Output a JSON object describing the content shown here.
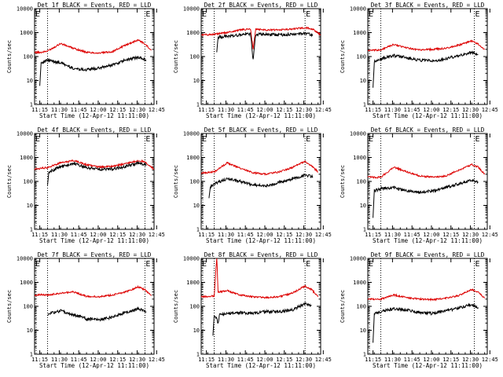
{
  "colors": {
    "events": "#000000",
    "lld": "#dd0000",
    "axis": "#000000",
    "background": "#ffffff"
  },
  "chart_data": [
    {
      "type": "line",
      "title": "Det 1f BLACK = Events, RED = LLD",
      "xlabel": "Start Time (12-Apr-12 11:11:00)",
      "ylabel": "Counts/sec",
      "x_ticks": [
        "11:15",
        "11:30",
        "11:45",
        "12:00",
        "12:15",
        "12:30",
        "12:45"
      ],
      "y_ticks": [
        "1",
        "10",
        "100",
        "1000",
        "10000"
      ],
      "y_scale": "log",
      "ylim": [
        1,
        10000
      ],
      "series": [
        {
          "name": "LLD",
          "color": "red",
          "x": [
            0,
            5,
            10,
            20,
            30,
            40,
            50,
            60,
            70,
            80,
            85,
            90
          ],
          "values": [
            150,
            150,
            170,
            350,
            220,
            150,
            140,
            160,
            300,
            500,
            330,
            190
          ]
        },
        {
          "name": "Events",
          "color": "black",
          "start_x": 4,
          "start_value": 6,
          "x": [
            5,
            10,
            20,
            30,
            40,
            50,
            60,
            70,
            80,
            86
          ],
          "values": [
            55,
            70,
            55,
            32,
            28,
            33,
            45,
            70,
            95,
            70
          ]
        }
      ],
      "vlines": [
        10,
        85
      ],
      "markers": [
        {
          "x": 85,
          "label": "E"
        }
      ]
    },
    {
      "type": "line",
      "title": "Det 2f BLACK = Events, RED = LLD",
      "xlabel": "Start Time (12-Apr-12 11:11:00)",
      "ylabel": "Counts/sec",
      "x_ticks": [
        "11:15",
        "11:30",
        "11:45",
        "12:00",
        "12:15",
        "12:30",
        "12:45"
      ],
      "y_ticks": [
        "1",
        "10",
        "100",
        "1000",
        "10000"
      ],
      "y_scale": "log",
      "ylim": [
        1,
        10000
      ],
      "series": [
        {
          "name": "LLD",
          "color": "red",
          "x": [
            0,
            10,
            20,
            30,
            38,
            40,
            42,
            50,
            60,
            70,
            80,
            86,
            92
          ],
          "values": [
            800,
            850,
            1000,
            1300,
            1400,
            200,
            1400,
            1300,
            1300,
            1400,
            1600,
            1400,
            800
          ]
        },
        {
          "name": "Events",
          "color": "black",
          "start_x": 12,
          "start_value": 150,
          "x": [
            13,
            20,
            30,
            38,
            40,
            42,
            50,
            60,
            70,
            80,
            86
          ],
          "values": [
            650,
            700,
            800,
            900,
            70,
            850,
            850,
            800,
            850,
            950,
            800
          ]
        }
      ],
      "vlines": [
        10,
        80
      ],
      "markers": [
        {
          "x": 80,
          "label": "E"
        }
      ]
    },
    {
      "type": "line",
      "title": "Det 3f BLACK = Events, RED = LLD",
      "xlabel": "Start Time (12-Apr-12 11:11:00)",
      "ylabel": "Counts/sec",
      "x_ticks": [
        "11:15",
        "11:30",
        "11:45",
        "12:00",
        "12:15",
        "12:30",
        "12:45"
      ],
      "y_ticks": [
        "1",
        "10",
        "100",
        "1000",
        "10000"
      ],
      "y_scale": "log",
      "ylim": [
        1,
        10000
      ],
      "series": [
        {
          "name": "LLD",
          "color": "red",
          "x": [
            0,
            5,
            10,
            20,
            30,
            40,
            50,
            60,
            70,
            80,
            85,
            90
          ],
          "values": [
            180,
            180,
            190,
            320,
            230,
            190,
            200,
            220,
            300,
            450,
            330,
            200
          ]
        },
        {
          "name": "Events",
          "color": "black",
          "start_x": 4,
          "start_value": 5,
          "x": [
            5,
            10,
            20,
            30,
            40,
            50,
            60,
            70,
            80,
            85
          ],
          "values": [
            60,
            80,
            110,
            90,
            70,
            65,
            80,
            110,
            150,
            120
          ]
        }
      ],
      "vlines": [
        10,
        82
      ],
      "markers": [
        {
          "x": 82,
          "label": "E"
        }
      ]
    },
    {
      "type": "line",
      "title": "Det 4f BLACK = Events, RED = LLD",
      "xlabel": "Start Time (12-Apr-12 11:11:00)",
      "ylabel": "Counts/sec",
      "x_ticks": [
        "11:15",
        "11:30",
        "11:45",
        "12:00",
        "12:15",
        "12:30",
        "12:45"
      ],
      "y_ticks": [
        "1",
        "10",
        "100",
        "1000",
        "10000"
      ],
      "y_scale": "log",
      "ylim": [
        1,
        10000
      ],
      "series": [
        {
          "name": "LLD",
          "color": "red",
          "x": [
            0,
            10,
            20,
            30,
            40,
            50,
            60,
            70,
            80,
            85,
            92
          ],
          "values": [
            330,
            380,
            600,
            750,
            500,
            400,
            420,
            550,
            750,
            650,
            330
          ]
        },
        {
          "name": "Events",
          "color": "black",
          "start_x": 10,
          "start_value": 70,
          "x": [
            11,
            20,
            30,
            40,
            50,
            60,
            70,
            80,
            86
          ],
          "values": [
            250,
            400,
            550,
            380,
            320,
            330,
            420,
            600,
            500
          ]
        }
      ],
      "vlines": [
        10,
        85
      ],
      "markers": [
        {
          "x": 85,
          "label": "E"
        }
      ]
    },
    {
      "type": "line",
      "title": "Det 5f BLACK = Events, RED = LLD",
      "xlabel": "Start Time (12-Apr-12 11:11:00)",
      "ylabel": "Counts/sec",
      "x_ticks": [
        "11:15",
        "11:30",
        "11:45",
        "12:00",
        "12:15",
        "12:30",
        "12:45"
      ],
      "y_ticks": [
        "1",
        "10",
        "100",
        "1000",
        "10000"
      ],
      "y_scale": "log",
      "ylim": [
        1,
        10000
      ],
      "series": [
        {
          "name": "LLD",
          "color": "red",
          "x": [
            0,
            10,
            20,
            30,
            40,
            50,
            60,
            70,
            80,
            85,
            90
          ],
          "values": [
            220,
            250,
            600,
            350,
            230,
            200,
            250,
            380,
            700,
            450,
            250
          ]
        },
        {
          "name": "Events",
          "color": "black",
          "start_x": 6,
          "start_value": 20,
          "x": [
            7,
            10,
            20,
            30,
            40,
            50,
            60,
            70,
            80,
            86
          ],
          "values": [
            60,
            80,
            130,
            100,
            70,
            65,
            90,
            130,
            180,
            160
          ]
        }
      ],
      "vlines": [
        10,
        80
      ],
      "markers": [
        {
          "x": 80,
          "label": "E"
        }
      ]
    },
    {
      "type": "line",
      "title": "Det 6f BLACK = Events, RED = LLD",
      "xlabel": "Start Time (12-Apr-12 11:11:00)",
      "ylabel": "Counts/sec",
      "x_ticks": [
        "11:15",
        "11:30",
        "11:45",
        "12:00",
        "12:15",
        "12:30",
        "12:45"
      ],
      "y_ticks": [
        "1",
        "10",
        "100",
        "1000",
        "10000"
      ],
      "y_scale": "log",
      "ylim": [
        1,
        10000
      ],
      "series": [
        {
          "name": "LLD",
          "color": "red",
          "x": [
            0,
            10,
            20,
            30,
            40,
            50,
            60,
            70,
            80,
            85,
            90
          ],
          "values": [
            150,
            150,
            400,
            250,
            170,
            150,
            170,
            300,
            500,
            400,
            200
          ]
        },
        {
          "name": "Events",
          "color": "black",
          "start_x": 4,
          "start_value": 3,
          "x": [
            5,
            10,
            20,
            30,
            40,
            50,
            60,
            70,
            80,
            85
          ],
          "values": [
            40,
            50,
            55,
            40,
            35,
            40,
            55,
            80,
            110,
            90
          ]
        }
      ],
      "vlines": [
        10,
        82
      ],
      "markers": [
        {
          "x": 82,
          "label": "E"
        }
      ]
    },
    {
      "type": "line",
      "title": "Det 7f BLACK = Events, RED = LLD",
      "xlabel": "Start Time (12-Apr-12 11:11:00)",
      "ylabel": "Counts/sec",
      "x_ticks": [
        "11:15",
        "11:30",
        "11:45",
        "12:00",
        "12:15",
        "12:30",
        "12:45"
      ],
      "y_ticks": [
        "1",
        "10",
        "100",
        "1000",
        "10000"
      ],
      "y_scale": "log",
      "ylim": [
        1,
        10000
      ],
      "series": [
        {
          "name": "LLD",
          "color": "red",
          "x": [
            0,
            10,
            20,
            30,
            40,
            50,
            60,
            70,
            80,
            85,
            90
          ],
          "values": [
            300,
            300,
            350,
            400,
            260,
            250,
            300,
            400,
            650,
            500,
            280
          ]
        },
        {
          "name": "Events",
          "color": "black",
          "start_x": 10,
          "start_value": 40,
          "x": [
            11,
            20,
            30,
            40,
            50,
            60,
            70,
            80,
            86
          ],
          "values": [
            50,
            65,
            45,
            30,
            28,
            35,
            55,
            80,
            60
          ]
        }
      ],
      "vlines": [
        10,
        85
      ],
      "markers": [
        {
          "x": 85,
          "label": "E"
        }
      ]
    },
    {
      "type": "line",
      "title": "Det 8f BLACK = Events, RED = LLD",
      "xlabel": "Start Time (12-Apr-12 11:11:00)",
      "ylabel": "Counts/sec",
      "x_ticks": [
        "11:15",
        "11:30",
        "11:45",
        "12:00",
        "12:15",
        "12:30",
        "12:45"
      ],
      "y_ticks": [
        "1",
        "10",
        "100",
        "1000",
        "10000"
      ],
      "y_scale": "log",
      "ylim": [
        1,
        10000
      ],
      "series": [
        {
          "name": "LLD",
          "color": "red",
          "x": [
            0,
            10,
            12,
            13,
            14,
            20,
            30,
            40,
            50,
            60,
            70,
            80,
            85,
            90
          ],
          "values": [
            250,
            270,
            12000,
            400,
            400,
            450,
            300,
            250,
            230,
            250,
            350,
            700,
            500,
            250
          ]
        },
        {
          "name": "Events",
          "color": "black",
          "start_x": 9,
          "start_value": 6,
          "x": [
            10,
            12,
            13,
            14,
            20,
            30,
            40,
            50,
            60,
            70,
            80,
            85
          ],
          "values": [
            40,
            30,
            18,
            45,
            50,
            55,
            50,
            60,
            60,
            70,
            130,
            110
          ]
        }
      ],
      "vlines": [
        10,
        80
      ],
      "markers": [
        {
          "x": 80,
          "label": "E"
        }
      ]
    },
    {
      "type": "line",
      "title": "Det 9f BLACK = Events, RED = LLD",
      "xlabel": "Start Time (12-Apr-12 11:11:00)",
      "ylabel": "Counts/sec",
      "x_ticks": [
        "11:15",
        "11:30",
        "11:45",
        "12:00",
        "12:15",
        "12:30",
        "12:45"
      ],
      "y_ticks": [
        "1",
        "10",
        "100",
        "1000",
        "10000"
      ],
      "y_scale": "log",
      "ylim": [
        1,
        10000
      ],
      "series": [
        {
          "name": "LLD",
          "color": "red",
          "x": [
            0,
            10,
            20,
            30,
            40,
            50,
            60,
            70,
            80,
            85,
            90
          ],
          "values": [
            200,
            200,
            300,
            230,
            200,
            190,
            220,
            280,
            500,
            380,
            220
          ]
        },
        {
          "name": "Events",
          "color": "black",
          "start_x": 4,
          "start_value": 3,
          "x": [
            5,
            10,
            20,
            30,
            40,
            50,
            60,
            70,
            80,
            85
          ],
          "values": [
            50,
            60,
            80,
            70,
            55,
            50,
            65,
            85,
            120,
            90
          ]
        }
      ],
      "vlines": [
        10,
        82
      ],
      "markers": [
        {
          "x": 82,
          "label": "E"
        }
      ]
    }
  ]
}
